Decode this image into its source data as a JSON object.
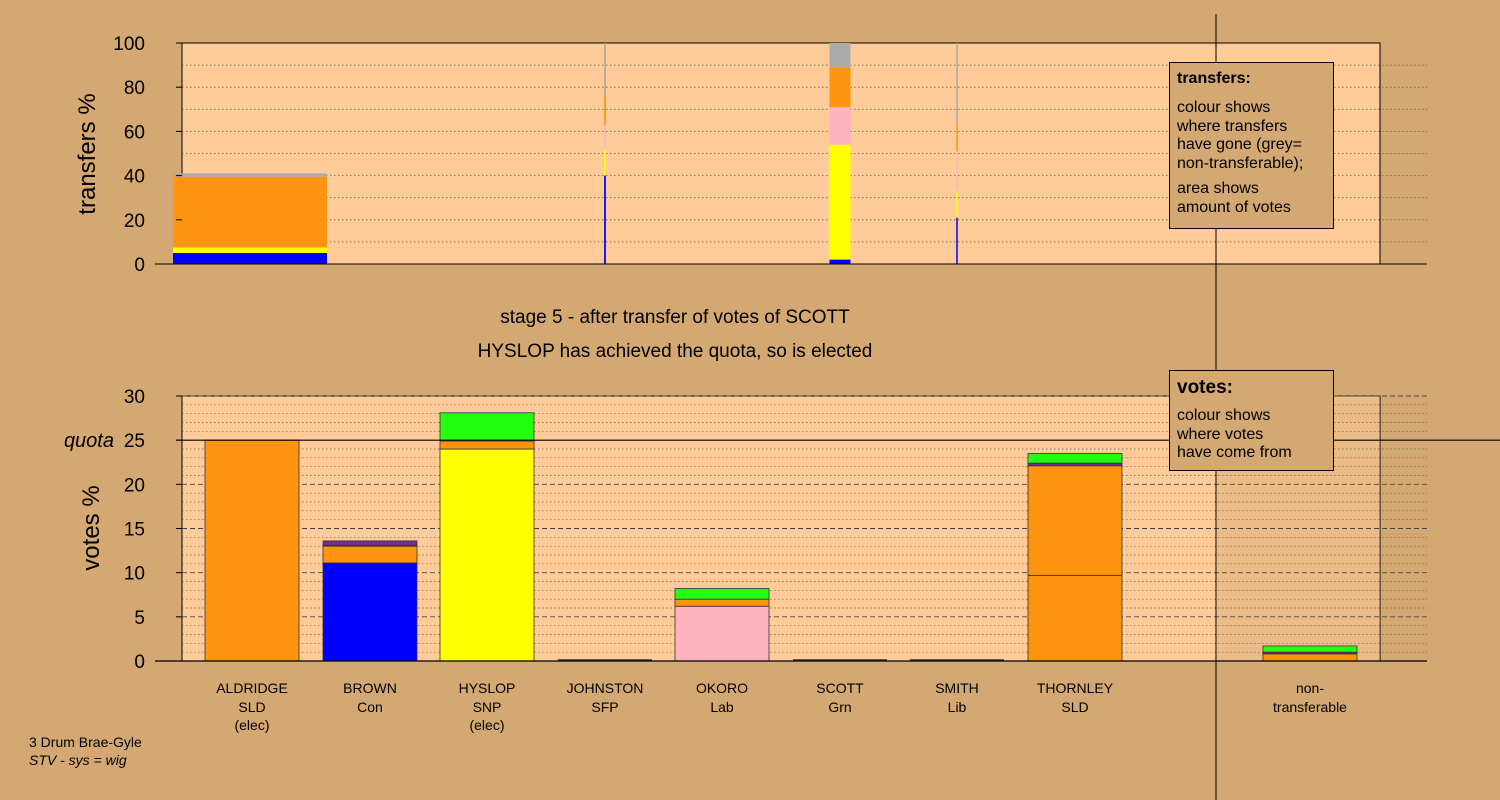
{
  "colors": {
    "background": "#d4a873",
    "plot_bg": "#ffcc99",
    "SLD": "#ff9411",
    "Con": "#0000ff",
    "SNP": "#ffff00",
    "Lab": "#ffb3c1",
    "Grn": "#22ff11",
    "SFP": "#7a2a8a",
    "nontransferable": "#aaaaaa"
  },
  "stage_info": {
    "line1": "stage 5 - after transfer of votes of SCOTT",
    "line2": "HYSLOP has achieved the quota, so is elected"
  },
  "legend_transfers": {
    "title": "transfers:",
    "line1": "colour shows",
    "line2": "where transfers",
    "line3": "have gone (grey=",
    "line4": "non-transferable);",
    "line5": "area shows",
    "line6": "amount of votes"
  },
  "legend_votes": {
    "title": "votes:",
    "line1": "colour shows",
    "line2": "where votes",
    "line3": "have come from"
  },
  "footer": {
    "ward": "3 Drum Brae-Gyle",
    "system": "STV - sys = wig"
  },
  "chart_data": [
    {
      "id": "transfers",
      "type": "bar",
      "ylabel": "transfers %",
      "ylim": [
        0,
        100
      ],
      "yticks": [
        0,
        20,
        40,
        60,
        80,
        100
      ],
      "bars": [
        {
          "candidate": "ALDRIDGE",
          "width_votes": 4.4,
          "segments": [
            {
              "party": "Con",
              "value": 5
            },
            {
              "party": "SNP",
              "value": 2.5
            },
            {
              "party": "SLD",
              "value": 32
            },
            {
              "party": "nontransferable",
              "value": 1.5
            }
          ]
        },
        {
          "candidate": "JOHNSTON",
          "width_votes": 0.05,
          "segments": [
            {
              "party": "Con",
              "value": 40
            },
            {
              "party": "SNP",
              "value": 12
            },
            {
              "party": "Lab",
              "value": 11
            },
            {
              "party": "SLD",
              "value": 13
            },
            {
              "party": "nontransferable",
              "value": 24
            }
          ]
        },
        {
          "candidate": "SCOTT",
          "width_votes": 0.6,
          "segments": [
            {
              "party": "Con",
              "value": 2
            },
            {
              "party": "SNP",
              "value": 52
            },
            {
              "party": "Lab",
              "value": 17
            },
            {
              "party": "SLD",
              "value": 18
            },
            {
              "party": "nontransferable",
              "value": 11
            }
          ]
        },
        {
          "candidate": "SMITH",
          "width_votes": 0.03,
          "segments": [
            {
              "party": "Con",
              "value": 21
            },
            {
              "party": "SNP",
              "value": 12
            },
            {
              "party": "Lab",
              "value": 18
            },
            {
              "party": "SLD",
              "value": 12
            },
            {
              "party": "nontransferable",
              "value": 37
            }
          ]
        }
      ]
    },
    {
      "id": "votes",
      "type": "bar",
      "ylabel": "votes %",
      "ylim": [
        0,
        30
      ],
      "yticks": [
        0,
        5,
        10,
        15,
        20,
        25,
        30
      ],
      "quota": 25,
      "quota_label": "quota",
      "candidates": [
        {
          "name": "ALDRIDGE",
          "party": "SLD",
          "status": "(elec)",
          "segments": [
            {
              "party": "SLD",
              "value": 25
            }
          ]
        },
        {
          "name": "BROWN",
          "party": "Con",
          "status": "",
          "segments": [
            {
              "party": "Con",
              "value": 11.1
            },
            {
              "party": "SLD",
              "value": 1.9
            },
            {
              "party": "Lab",
              "value": 0.1
            },
            {
              "party": "SFP",
              "value": 0.5
            }
          ]
        },
        {
          "name": "HYSLOP",
          "party": "SNP",
          "status": "(elec)",
          "segments": [
            {
              "party": "SNP",
              "value": 24.0
            },
            {
              "party": "SLD",
              "value": 0.9
            },
            {
              "party": "Grn",
              "value": 3.2
            }
          ]
        },
        {
          "name": "JOHNSTON",
          "party": "SFP",
          "status": "",
          "segments": []
        },
        {
          "name": "OKORO",
          "party": "Lab",
          "status": "",
          "segments": [
            {
              "party": "Lab",
              "value": 6.2
            },
            {
              "party": "SLD",
              "value": 0.8
            },
            {
              "party": "Grn",
              "value": 1.2
            }
          ]
        },
        {
          "name": "SCOTT",
          "party": "Grn",
          "status": "",
          "segments": []
        },
        {
          "name": "SMITH",
          "party": "Lib",
          "status": "",
          "segments": []
        },
        {
          "name": "THORNLEY",
          "party": "SLD",
          "status": "",
          "segments": [
            {
              "party": "SLD",
              "value": 9.7
            },
            {
              "party": "SLD",
              "value": 12.4
            },
            {
              "party": "SFP",
              "value": 0.3
            },
            {
              "party": "Grn",
              "value": 1.1
            }
          ]
        },
        {
          "name": "non-",
          "party": "transferable",
          "status": "",
          "segments": [
            {
              "party": "SLD",
              "value": 0.8
            },
            {
              "party": "SFP",
              "value": 0.2
            },
            {
              "party": "Grn",
              "value": 0.7
            }
          ]
        }
      ]
    }
  ]
}
